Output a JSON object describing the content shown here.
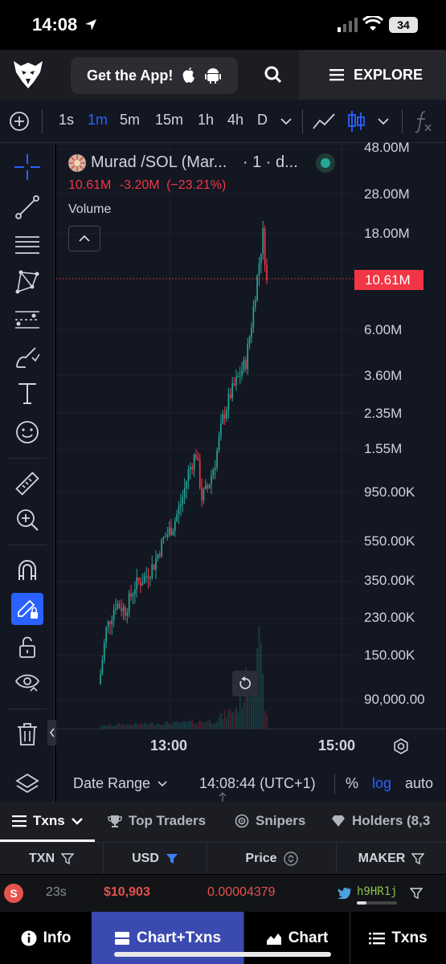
{
  "status_bar": {
    "time": "14:08",
    "battery": "34"
  },
  "header": {
    "get_app_label": "Get the App!",
    "explore_label": "EXPLORE"
  },
  "toolbar": {
    "intervals": [
      "1s",
      "1m",
      "5m",
      "15m",
      "1h",
      "4h",
      "D"
    ],
    "active_interval": "1m"
  },
  "chart": {
    "symbol": "Murad /SOL (Mar...",
    "interval_suffix": "· 1 · d...",
    "last": "10.61M",
    "change": "-3.20M",
    "change_pct": "(−23.21%)",
    "volume_label": "Volume",
    "price_tag": "10.61M",
    "status_color": "#26a69a",
    "up_color": "#26a69a",
    "down_color": "#f23645"
  },
  "chart_data": {
    "type": "candlestick",
    "title": "Murad /SOL",
    "scale": "log",
    "y_ticks": [
      "48.00M",
      "28.00M",
      "18.00M",
      "6.00M",
      "3.60M",
      "2.35M",
      "1.55M",
      "950.00K",
      "550.00K",
      "350.00K",
      "230.00K",
      "150.00K",
      "90,000.00"
    ],
    "x_ticks": [
      "13:00",
      "15:00"
    ],
    "last_price": "10.61M",
    "close_path": [
      [
        0,
        120000
      ],
      [
        3,
        200000
      ],
      [
        8,
        270000
      ],
      [
        13,
        250000
      ],
      [
        18,
        330000
      ],
      [
        23,
        360000
      ],
      [
        28,
        420000
      ],
      [
        33,
        560000
      ],
      [
        38,
        650000
      ],
      [
        43,
        900000
      ],
      [
        46,
        1200000
      ],
      [
        50,
        1500000
      ],
      [
        53,
        900000
      ],
      [
        56,
        1000000
      ],
      [
        60,
        1350000
      ],
      [
        64,
        2200000
      ],
      [
        68,
        2900000
      ],
      [
        72,
        3500000
      ],
      [
        76,
        4200000
      ],
      [
        79,
        6500000
      ],
      [
        82,
        11000000
      ],
      [
        85,
        18000000
      ],
      [
        87,
        10610000
      ]
    ],
    "volume_profile": [
      [
        0,
        2
      ],
      [
        10,
        3
      ],
      [
        20,
        3
      ],
      [
        30,
        4
      ],
      [
        40,
        4
      ],
      [
        50,
        5
      ],
      [
        60,
        6
      ],
      [
        65,
        10
      ],
      [
        70,
        14
      ],
      [
        73,
        18
      ],
      [
        75,
        25
      ],
      [
        77,
        40
      ],
      [
        79,
        30
      ],
      [
        80,
        55
      ],
      [
        82,
        70
      ],
      [
        84,
        45
      ],
      [
        85,
        30
      ],
      [
        86,
        20
      ],
      [
        87,
        12
      ]
    ]
  },
  "chart_bottom": {
    "date_range": "Date Range",
    "clock": "14:08:44 (UTC+1)",
    "pct": "%",
    "log": "log",
    "auto": "auto"
  },
  "tabs": [
    {
      "label": "Txns"
    },
    {
      "label": "Top Traders"
    },
    {
      "label": "Snipers"
    },
    {
      "label": "Holders (8,3"
    }
  ],
  "table": {
    "headers": [
      "TXN",
      "USD",
      "Price",
      "MAKER"
    ],
    "rows": [
      {
        "type": "S",
        "age": "23s",
        "usd": "$10,903",
        "price": "0.00004379",
        "maker": "h9HR1j"
      }
    ]
  },
  "bottom_nav": [
    "Info",
    "Chart+Txns",
    "Chart",
    "Txns"
  ]
}
